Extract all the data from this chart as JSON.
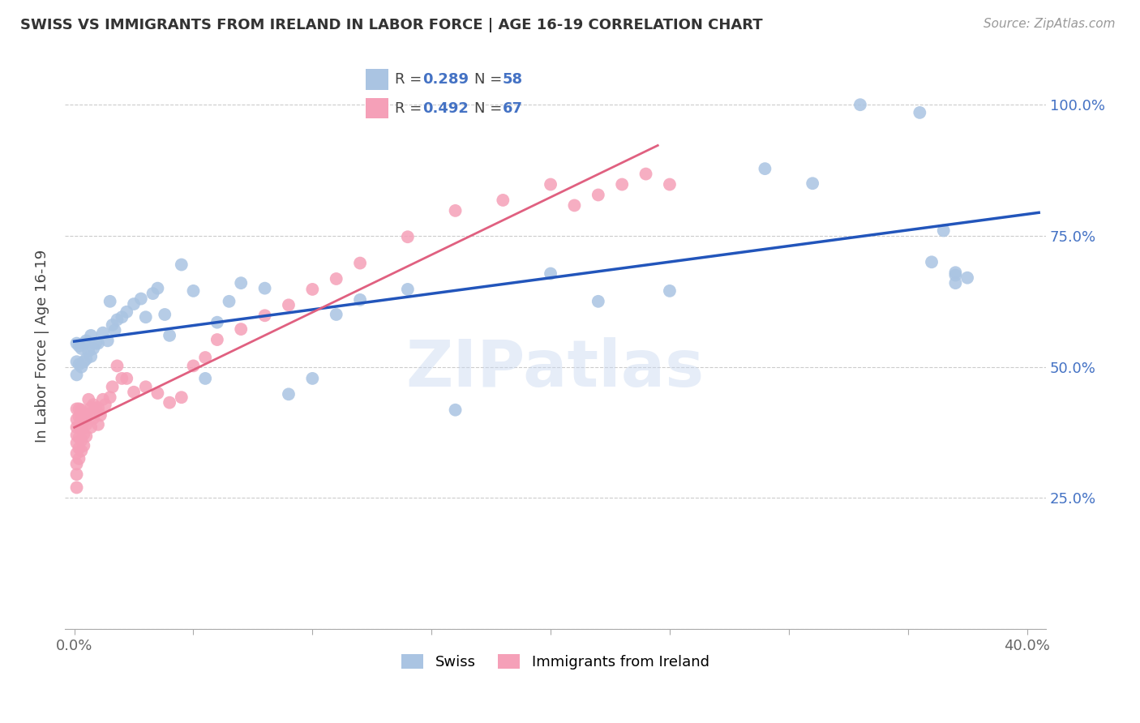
{
  "title": "SWISS VS IMMIGRANTS FROM IRELAND IN LABOR FORCE | AGE 16-19 CORRELATION CHART",
  "source": "Source: ZipAtlas.com",
  "ylabel": "In Labor Force | Age 16-19",
  "swiss_color": "#aac4e2",
  "irish_color": "#f5a0b8",
  "trend_swiss_color": "#2255bb",
  "trend_irish_color": "#e06080",
  "swiss_R": 0.289,
  "swiss_N": 58,
  "irish_R": 0.492,
  "irish_N": 67,
  "watermark": "ZIPatlas",
  "background_color": "#ffffff",
  "grid_color": "#cccccc",
  "swiss_scatter_x": [
    0.001,
    0.001,
    0.001,
    0.002,
    0.002,
    0.003,
    0.003,
    0.004,
    0.004,
    0.005,
    0.005,
    0.006,
    0.007,
    0.007,
    0.008,
    0.009,
    0.01,
    0.012,
    0.014,
    0.015,
    0.016,
    0.017,
    0.018,
    0.02,
    0.022,
    0.025,
    0.028,
    0.03,
    0.033,
    0.035,
    0.038,
    0.04,
    0.045,
    0.05,
    0.055,
    0.06,
    0.065,
    0.07,
    0.08,
    0.09,
    0.1,
    0.11,
    0.12,
    0.14,
    0.16,
    0.2,
    0.22,
    0.25,
    0.29,
    0.31,
    0.33,
    0.355,
    0.36,
    0.365,
    0.37,
    0.37,
    0.37,
    0.375
  ],
  "swiss_scatter_y": [
    0.485,
    0.51,
    0.545,
    0.505,
    0.54,
    0.5,
    0.535,
    0.51,
    0.545,
    0.515,
    0.55,
    0.53,
    0.52,
    0.56,
    0.535,
    0.545,
    0.545,
    0.565,
    0.55,
    0.625,
    0.58,
    0.57,
    0.59,
    0.595,
    0.605,
    0.62,
    0.63,
    0.595,
    0.64,
    0.65,
    0.6,
    0.56,
    0.695,
    0.645,
    0.478,
    0.585,
    0.625,
    0.66,
    0.65,
    0.448,
    0.478,
    0.6,
    0.628,
    0.648,
    0.418,
    0.678,
    0.625,
    0.645,
    0.878,
    0.85,
    1.0,
    0.985,
    0.7,
    0.76,
    0.68,
    0.66,
    0.675,
    0.67
  ],
  "irish_scatter_x": [
    0.001,
    0.001,
    0.001,
    0.001,
    0.001,
    0.001,
    0.001,
    0.001,
    0.001,
    0.002,
    0.002,
    0.002,
    0.002,
    0.002,
    0.002,
    0.003,
    0.003,
    0.003,
    0.003,
    0.003,
    0.004,
    0.004,
    0.004,
    0.004,
    0.005,
    0.005,
    0.005,
    0.006,
    0.006,
    0.007,
    0.007,
    0.008,
    0.008,
    0.009,
    0.01,
    0.01,
    0.011,
    0.012,
    0.013,
    0.015,
    0.016,
    0.018,
    0.02,
    0.022,
    0.025,
    0.03,
    0.035,
    0.04,
    0.045,
    0.05,
    0.055,
    0.06,
    0.07,
    0.08,
    0.09,
    0.1,
    0.11,
    0.12,
    0.14,
    0.16,
    0.18,
    0.2,
    0.21,
    0.22,
    0.23,
    0.24,
    0.25
  ],
  "irish_scatter_y": [
    0.42,
    0.4,
    0.385,
    0.37,
    0.355,
    0.335,
    0.315,
    0.295,
    0.27,
    0.42,
    0.405,
    0.388,
    0.365,
    0.345,
    0.325,
    0.418,
    0.4,
    0.38,
    0.36,
    0.34,
    0.412,
    0.395,
    0.372,
    0.35,
    0.41,
    0.39,
    0.368,
    0.438,
    0.408,
    0.422,
    0.385,
    0.428,
    0.402,
    0.422,
    0.422,
    0.39,
    0.408,
    0.438,
    0.428,
    0.442,
    0.462,
    0.502,
    0.478,
    0.478,
    0.452,
    0.462,
    0.45,
    0.432,
    0.442,
    0.502,
    0.518,
    0.552,
    0.572,
    0.598,
    0.618,
    0.648,
    0.668,
    0.698,
    0.748,
    0.798,
    0.818,
    0.848,
    0.808,
    0.828,
    0.848,
    0.868,
    0.848
  ],
  "xtick_pos": [
    0.0,
    0.05,
    0.1,
    0.15,
    0.2,
    0.25,
    0.3,
    0.35,
    0.4
  ],
  "xtick_labels": [
    "0.0%",
    "",
    "",
    "",
    "",
    "",
    "",
    "",
    "40.0%"
  ],
  "ytick_pos": [
    0.0,
    0.25,
    0.5,
    0.75,
    1.0
  ],
  "ytick_labels": [
    "",
    "25.0%",
    "50.0%",
    "75.0%",
    "100.0%"
  ],
  "xlim": [
    -0.004,
    0.408
  ],
  "ylim": [
    0.08,
    1.08
  ]
}
